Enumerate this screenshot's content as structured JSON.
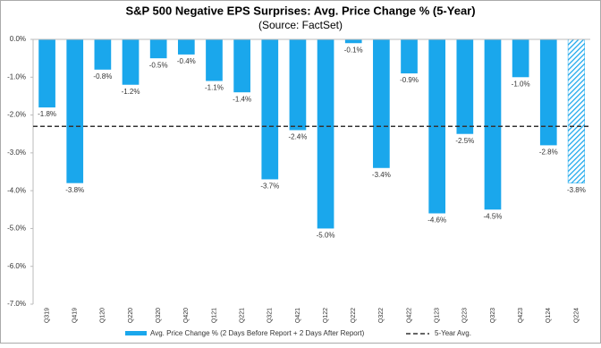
{
  "chart_data": {
    "type": "bar",
    "title": "S&P 500 Negative EPS Surprises: Avg. Price Change % (5-Year)",
    "subtitle": "(Source: FactSet)",
    "categories": [
      "Q319",
      "Q419",
      "Q120",
      "Q220",
      "Q320",
      "Q420",
      "Q121",
      "Q221",
      "Q321",
      "Q421",
      "Q122",
      "Q222",
      "Q322",
      "Q422",
      "Q123",
      "Q223",
      "Q323",
      "Q423",
      "Q124",
      "Q224"
    ],
    "series": [
      {
        "name": "Avg. Price Change % (2 Days Before Report + 2 Days After Report)",
        "color": "#1aa7ec",
        "values": [
          -1.8,
          -3.8,
          -0.8,
          -1.2,
          -0.5,
          -0.4,
          -1.1,
          -1.4,
          -3.7,
          -2.4,
          -5.0,
          -0.1,
          -3.4,
          -0.9,
          -4.6,
          -2.5,
          -4.5,
          -1.0,
          -2.8,
          -3.8
        ],
        "value_labels": [
          "-1.8%",
          "-3.8%",
          "-0.8%",
          "-1.2%",
          "-0.5%",
          "-0.4%",
          "-1.1%",
          "-1.4%",
          "-3.7%",
          "-2.4%",
          "-5.0%",
          "-0.1%",
          "-3.4%",
          "-0.9%",
          "-4.6%",
          "-2.5%",
          "-4.5%",
          "-1.0%",
          "-2.8%",
          "-3.8%"
        ],
        "hatched": [
          false,
          false,
          false,
          false,
          false,
          false,
          false,
          false,
          false,
          false,
          false,
          false,
          false,
          false,
          false,
          false,
          false,
          false,
          false,
          true
        ]
      }
    ],
    "reference_line": {
      "name": "5-Year Avg.",
      "value": -2.3,
      "color": "#333333"
    },
    "ylim": [
      -7.0,
      0.0
    ],
    "yticks": [
      {
        "value": 0.0,
        "label": "0.0%"
      },
      {
        "value": -1.0,
        "label": "-1.0%"
      },
      {
        "value": -2.0,
        "label": "-2.0%"
      },
      {
        "value": -3.0,
        "label": "-3.0%"
      },
      {
        "value": -4.0,
        "label": "-4.0%"
      },
      {
        "value": -5.0,
        "label": "-5.0%"
      },
      {
        "value": -6.0,
        "label": "-6.0%"
      },
      {
        "value": -7.0,
        "label": "-7.0%"
      }
    ]
  }
}
